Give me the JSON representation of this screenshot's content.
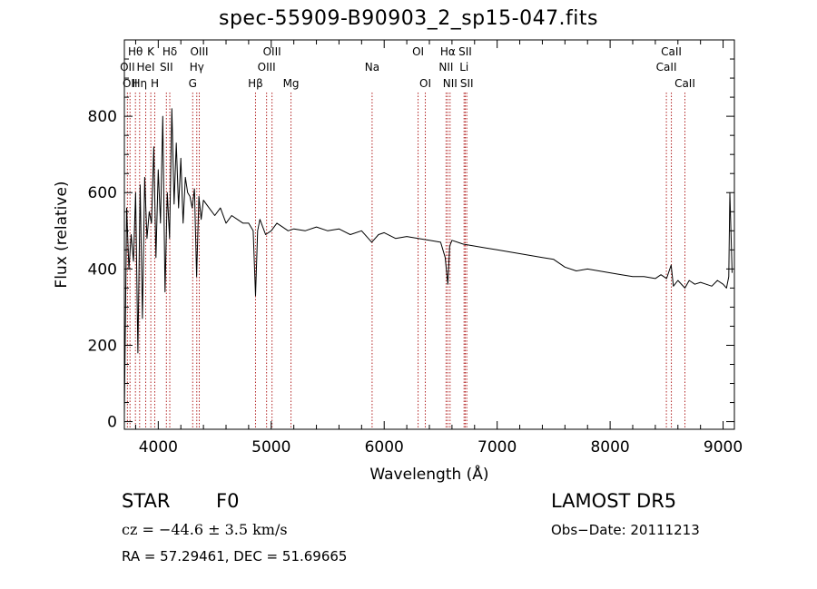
{
  "title": "spec-55909-B90903_2_sp15-047.fits",
  "info": {
    "object_class": "STAR",
    "subclass": "F0",
    "survey": "LAMOST DR5",
    "cz": "cz = −44.6 ± 3.5 km/s",
    "obs_date": "Obs−Date: 20111213",
    "radec": "RA =  57.29461, DEC =  51.69665"
  },
  "colors": {
    "spectrum": "#000000",
    "line_marker": "#b22222",
    "axes": "#000000"
  },
  "chart_data": {
    "type": "line",
    "title": "spec-55909-B90903_2_sp15-047.fits",
    "xlabel": "Wavelength (Å)",
    "ylabel": "Flux (relative)",
    "xlim": [
      3700,
      9100
    ],
    "ylim": [
      -20,
      1000
    ],
    "xticks": [
      4000,
      5000,
      6000,
      7000,
      8000,
      9000
    ],
    "yticks": [
      0,
      200,
      400,
      600,
      800
    ],
    "grid": false,
    "series": [
      {
        "x": [
          3700,
          3710,
          3720,
          3740,
          3760,
          3780,
          3800,
          3820,
          3840,
          3860,
          3880,
          3900,
          3920,
          3940,
          3960,
          3980,
          4000,
          4020,
          4040,
          4060,
          4080,
          4100,
          4120,
          4140,
          4160,
          4180,
          4200,
          4220,
          4240,
          4260,
          4280,
          4300,
          4320,
          4340,
          4360,
          4380,
          4400,
          4450,
          4500,
          4550,
          4600,
          4650,
          4700,
          4750,
          4800,
          4840,
          4861,
          4880,
          4900,
          4950,
          5000,
          5050,
          5100,
          5150,
          5200,
          5300,
          5400,
          5500,
          5600,
          5700,
          5800,
          5890,
          5950,
          6000,
          6100,
          6200,
          6300,
          6400,
          6500,
          6540,
          6563,
          6580,
          6600,
          6700,
          6800,
          6900,
          7000,
          7100,
          7200,
          7300,
          7400,
          7500,
          7600,
          7700,
          7800,
          7900,
          8000,
          8100,
          8200,
          8300,
          8400,
          8450,
          8500,
          8540,
          8560,
          8600,
          8662,
          8700,
          8750,
          8800,
          8850,
          8900,
          8950,
          9000,
          9030,
          9050,
          9060,
          9080
        ],
        "y": [
          20,
          270,
          560,
          400,
          490,
          420,
          600,
          180,
          620,
          270,
          640,
          480,
          550,
          520,
          720,
          430,
          660,
          520,
          800,
          340,
          600,
          480,
          820,
          570,
          730,
          560,
          690,
          520,
          640,
          600,
          590,
          560,
          610,
          380,
          590,
          530,
          580,
          560,
          540,
          560,
          520,
          540,
          530,
          520,
          520,
          500,
          330,
          500,
          530,
          490,
          500,
          520,
          510,
          500,
          505,
          500,
          510,
          500,
          505,
          490,
          500,
          470,
          490,
          495,
          480,
          485,
          480,
          475,
          470,
          430,
          360,
          460,
          475,
          465,
          460,
          455,
          450,
          445,
          440,
          435,
          430,
          425,
          405,
          395,
          400,
          395,
          390,
          385,
          380,
          380,
          375,
          385,
          375,
          410,
          355,
          370,
          350,
          370,
          360,
          365,
          360,
          355,
          370,
          360,
          350,
          380,
          600,
          390
        ]
      }
    ],
    "lines": [
      {
        "wave": 3727,
        "label": "OII",
        "row": 1
      },
      {
        "wave": 3750,
        "label": "OII",
        "row": 2
      },
      {
        "wave": 3798,
        "label": "Hθ",
        "row": 0
      },
      {
        "wave": 3835,
        "label": "Hη",
        "row": 2
      },
      {
        "wave": 3889,
        "label": "HeI",
        "row": 1
      },
      {
        "wave": 3934,
        "label": "K",
        "row": 0
      },
      {
        "wave": 3969,
        "label": "H",
        "row": 2
      },
      {
        "wave": 4072,
        "label": "SII",
        "row": 1
      },
      {
        "wave": 4102,
        "label": "Hδ",
        "row": 0
      },
      {
        "wave": 4305,
        "label": "G",
        "row": 2
      },
      {
        "wave": 4341,
        "label": "Hγ",
        "row": 1
      },
      {
        "wave": 4363,
        "label": "OIII",
        "row": 0
      },
      {
        "wave": 4861,
        "label": "Hβ",
        "row": 2
      },
      {
        "wave": 4959,
        "label": "OIII",
        "row": 1
      },
      {
        "wave": 5007,
        "label": "OIII",
        "row": 0
      },
      {
        "wave": 5175,
        "label": "Mg",
        "row": 2
      },
      {
        "wave": 5893,
        "label": "Na",
        "row": 1
      },
      {
        "wave": 6300,
        "label": "OI",
        "row": 0
      },
      {
        "wave": 6364,
        "label": "OI",
        "row": 2
      },
      {
        "wave": 6548,
        "label": "NII",
        "row": 1
      },
      {
        "wave": 6563,
        "label": "Hα",
        "row": 0
      },
      {
        "wave": 6583,
        "label": "NII",
        "row": 2
      },
      {
        "wave": 6707,
        "label": "Li",
        "row": 1
      },
      {
        "wave": 6717,
        "label": "SII",
        "row": 0
      },
      {
        "wave": 6731,
        "label": "SII",
        "row": 2
      },
      {
        "wave": 8498,
        "label": "CaII",
        "row": 1
      },
      {
        "wave": 8542,
        "label": "CaII",
        "row": 0
      },
      {
        "wave": 8662,
        "label": "CaII",
        "row": 2
      }
    ]
  }
}
